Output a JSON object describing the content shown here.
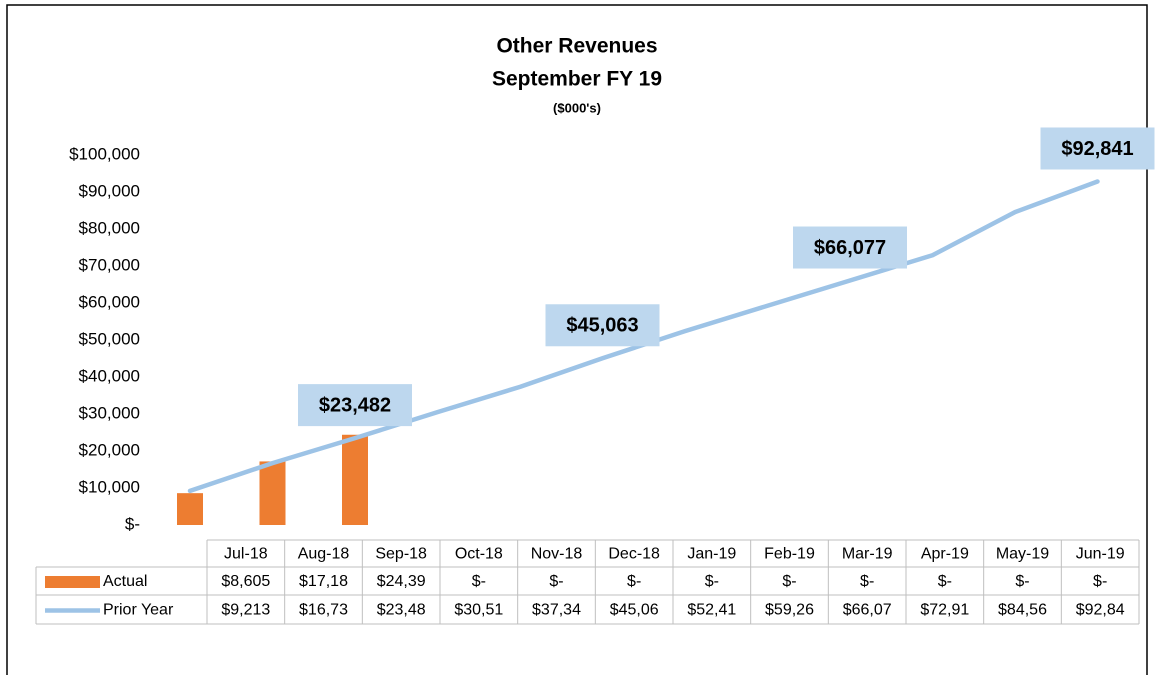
{
  "chart_data": {
    "type": "bar-line",
    "title": "Other Revenues",
    "subtitle": "September FY 19",
    "units_note": "($000's)",
    "categories": [
      "Jul-18",
      "Aug-18",
      "Sep-18",
      "Oct-18",
      "Nov-18",
      "Dec-18",
      "Jan-19",
      "Feb-19",
      "Mar-19",
      "Apr-19",
      "May-19",
      "Jun-19"
    ],
    "series": [
      {
        "name": "Actual",
        "type": "bar",
        "color": "#ed7d31",
        "values": [
          8605,
          17180,
          24390,
          0,
          0,
          0,
          0,
          0,
          0,
          0,
          0,
          0
        ],
        "value_labels": [
          "$8,605",
          "$17,18",
          "$24,39",
          "$-",
          "$-",
          "$-",
          "$-",
          "$-",
          "$-",
          "$-",
          "$-",
          "$-"
        ]
      },
      {
        "name": "Prior Year",
        "type": "line",
        "color": "#9dc3e6",
        "values": [
          9213,
          16730,
          23482,
          30510,
          37340,
          45063,
          52410,
          59260,
          66077,
          72910,
          84560,
          92841
        ],
        "value_labels": [
          "$9,213",
          "$16,73",
          "$23,48",
          "$30,51",
          "$37,34",
          "$45,06",
          "$52,41",
          "$59,26",
          "$66,07",
          "$72,91",
          "$84,56",
          "$92,84"
        ]
      }
    ],
    "callouts": [
      {
        "series_index": 1,
        "category_index": 2,
        "label": "$23,482"
      },
      {
        "series_index": 1,
        "category_index": 5,
        "label": "$45,063"
      },
      {
        "series_index": 1,
        "category_index": 8,
        "label": "$66,077"
      },
      {
        "series_index": 1,
        "category_index": 11,
        "label": "$92,841"
      }
    ],
    "ylim": [
      0,
      100000
    ],
    "yticks": [
      {
        "value": 0,
        "label": "$-"
      },
      {
        "value": 10000,
        "label": "$10,000"
      },
      {
        "value": 20000,
        "label": "$20,000"
      },
      {
        "value": 30000,
        "label": "$30,000"
      },
      {
        "value": 40000,
        "label": "$40,000"
      },
      {
        "value": 50000,
        "label": "$50,000"
      },
      {
        "value": 60000,
        "label": "$60,000"
      },
      {
        "value": 70000,
        "label": "$70,000"
      },
      {
        "value": 80000,
        "label": "$80,000"
      },
      {
        "value": 90000,
        "label": "$90,000"
      },
      {
        "value": 100000,
        "label": "$100,000"
      }
    ],
    "grid": false,
    "callout_color": "#bdd7ee"
  }
}
